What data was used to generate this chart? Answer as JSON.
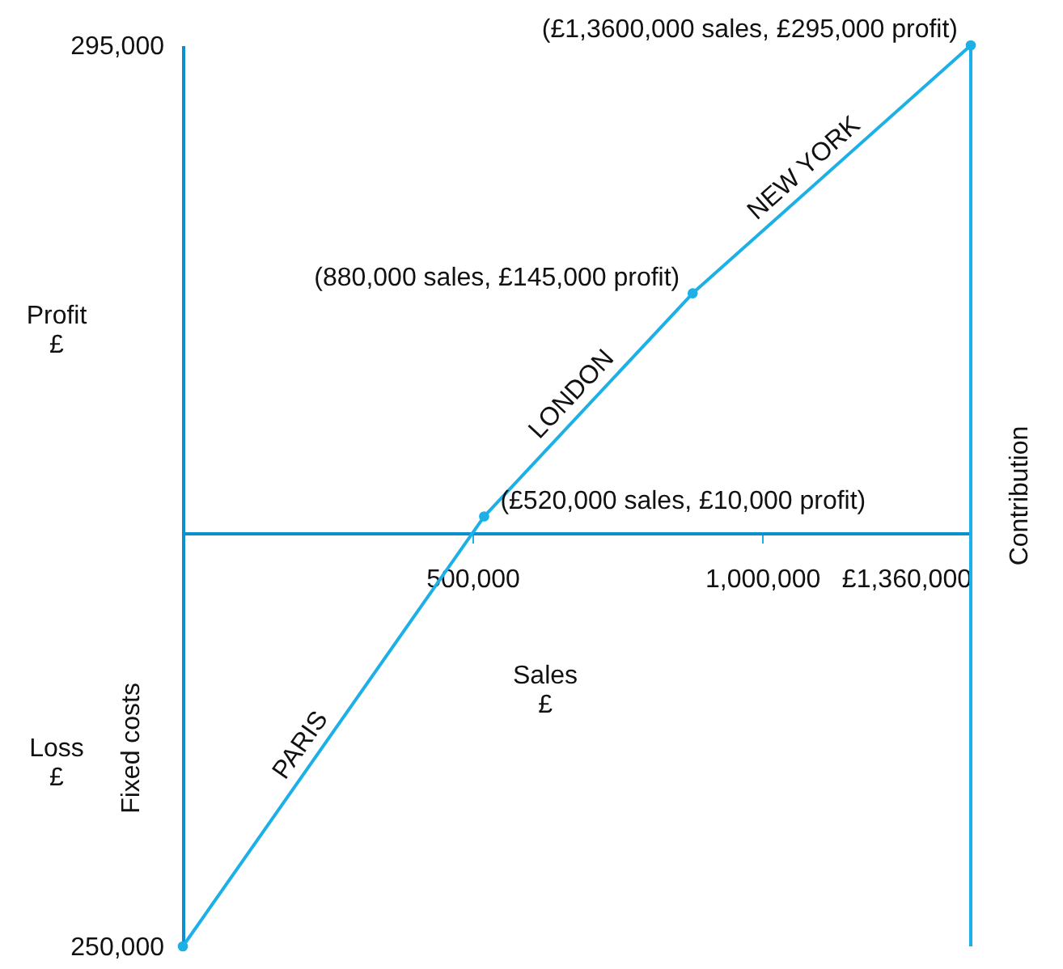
{
  "chart_data": {
    "type": "line",
    "xlabel": "Sales £",
    "ylabel": "Profit £",
    "x": [
      0,
      520000,
      880000,
      1360000
    ],
    "series": [
      {
        "color": "#1cb0e6",
        "values": [
          -250000,
          10000,
          145000,
          295000
        ]
      }
    ],
    "marker": "circle",
    "line_style": "solid",
    "grid": false,
    "xlim": [
      0,
      1360000
    ],
    "ylim": [
      -250000,
      295000
    ],
    "xticks": [
      {
        "value": 500000,
        "label": "500,000"
      },
      {
        "value": 1000000,
        "label": "1,000,000"
      },
      {
        "value": 1360000,
        "label": "£1,360,000"
      }
    ],
    "yticks": [
      {
        "value": 295000,
        "label": "295,000"
      },
      {
        "value": -250000,
        "label": "250,000"
      }
    ],
    "ref_lines": [
      {
        "axis": "x",
        "value": 1360000
      }
    ],
    "annotations": [
      {
        "text": "(£520,000 sales, £10,000 profit)",
        "x": 520000,
        "y": 10000
      },
      {
        "text": "(880,000 sales, £145,000 profit)",
        "x": 880000,
        "y": 145000
      },
      {
        "text": "(£1,3600,000 sales, £295,000 profit)",
        "x": 1360000,
        "y": 295000
      },
      {
        "text": "PARIS",
        "x": 230000,
        "y": -135000
      },
      {
        "text": "LONDON",
        "x": 695000,
        "y": 76000
      },
      {
        "text": "NEW YORK",
        "x": 1094000,
        "y": 212000
      },
      "Loss £",
      "Fixed costs",
      "Contribution"
    ]
  }
}
